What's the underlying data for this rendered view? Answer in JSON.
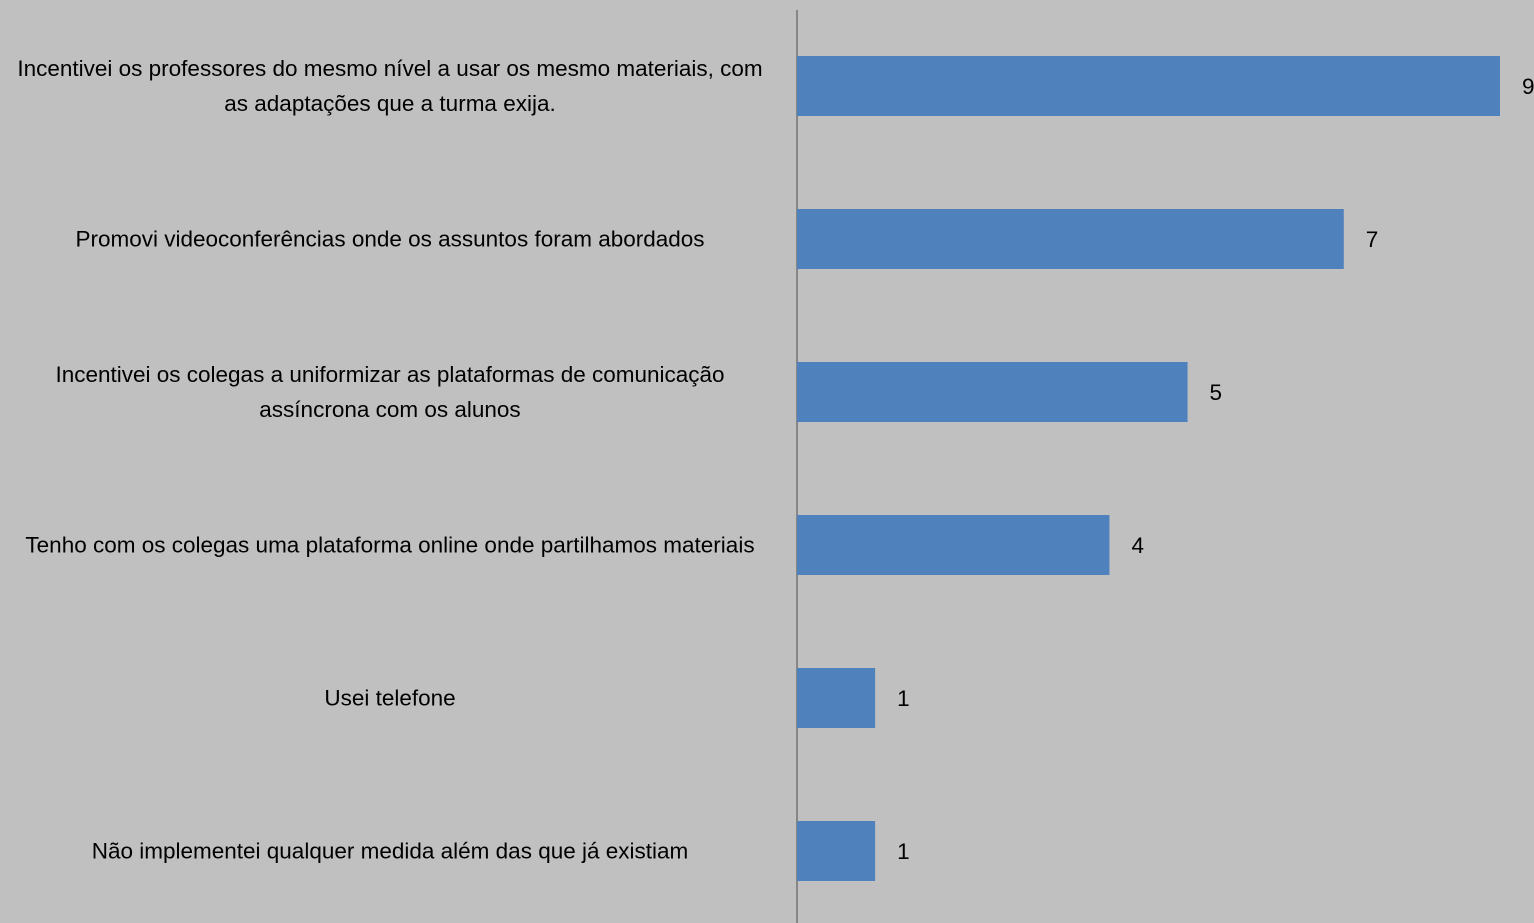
{
  "chart_data": {
    "type": "bar",
    "orientation": "horizontal",
    "categories": [
      "Incentivei os professores do mesmo nível a usar os mesmo materiais, com as adaptações que a turma exija.",
      "Promovi videoconferências onde os assuntos foram abordados",
      "Incentivei os colegas a uniformizar as plataformas de comunicação assíncrona com os alunos",
      "Tenho com os colegas uma plataforma online onde partilhamos materiais",
      "Usei telefone",
      "Não implementei qualquer medida além das que já existiam"
    ],
    "values": [
      9,
      7,
      5,
      4,
      1,
      1
    ],
    "color": "#4f81bd"
  }
}
